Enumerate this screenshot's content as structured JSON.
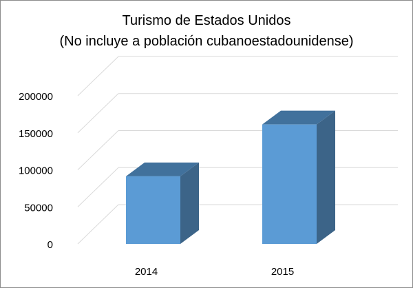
{
  "chart_data": {
    "type": "bar",
    "style": "3d-column",
    "title": "Turismo de Estados Unidos",
    "subtitle": "(No incluye a población cubanoestadounidense)",
    "categories": [
      "2014",
      "2015"
    ],
    "series": [
      {
        "values": [
          91254,
          161233
        ]
      }
    ],
    "xlabel": "",
    "ylabel": "",
    "ylim": [
      0,
      200000
    ],
    "yticks": [
      0,
      50000,
      100000,
      150000,
      200000
    ],
    "grid": true,
    "legend": "none",
    "colors": {
      "bar_front": "#5b9bd5",
      "bar_top": "#41719c",
      "bar_side": "#3c6488",
      "gridline": "#d9d9d9",
      "text": "#000000"
    }
  }
}
